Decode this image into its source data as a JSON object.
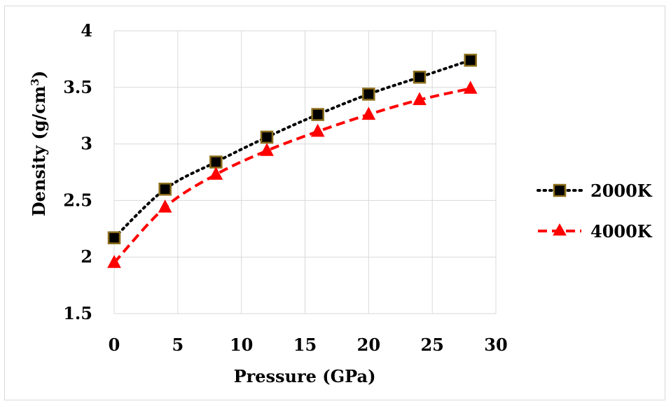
{
  "chart_data": {
    "type": "line",
    "xlabel": "Pressure (GPa)",
    "ylabel_main": "Density (g/cm",
    "ylabel_sup": "3",
    "ylabel_close": ")",
    "xlim": [
      0,
      30
    ],
    "ylim": [
      1.5,
      4
    ],
    "xticks": [
      "0",
      "5",
      "10",
      "15",
      "20",
      "25",
      "30"
    ],
    "yticks": [
      "1.5",
      "2",
      "2.5",
      "3",
      "3.5",
      "4"
    ],
    "grid": true,
    "legend_position": "right",
    "x": [
      0,
      4,
      8,
      12,
      16,
      20,
      24,
      28
    ],
    "series": [
      {
        "name": "2000K",
        "values": [
          2.17,
          2.6,
          2.84,
          3.06,
          3.26,
          3.44,
          3.59,
          3.74
        ],
        "color": "#000000",
        "marker": "square",
        "marker_fill": "#000000",
        "marker_edge": "#8b6d1a",
        "line_style": "dotted"
      },
      {
        "name": "4000K",
        "values": [
          1.95,
          2.44,
          2.73,
          2.94,
          3.11,
          3.26,
          3.39,
          3.49
        ],
        "color": "#ff0000",
        "marker": "triangle",
        "marker_fill": "#ff0000",
        "marker_edge": "#ff0000",
        "line_style": "dashed"
      }
    ]
  }
}
